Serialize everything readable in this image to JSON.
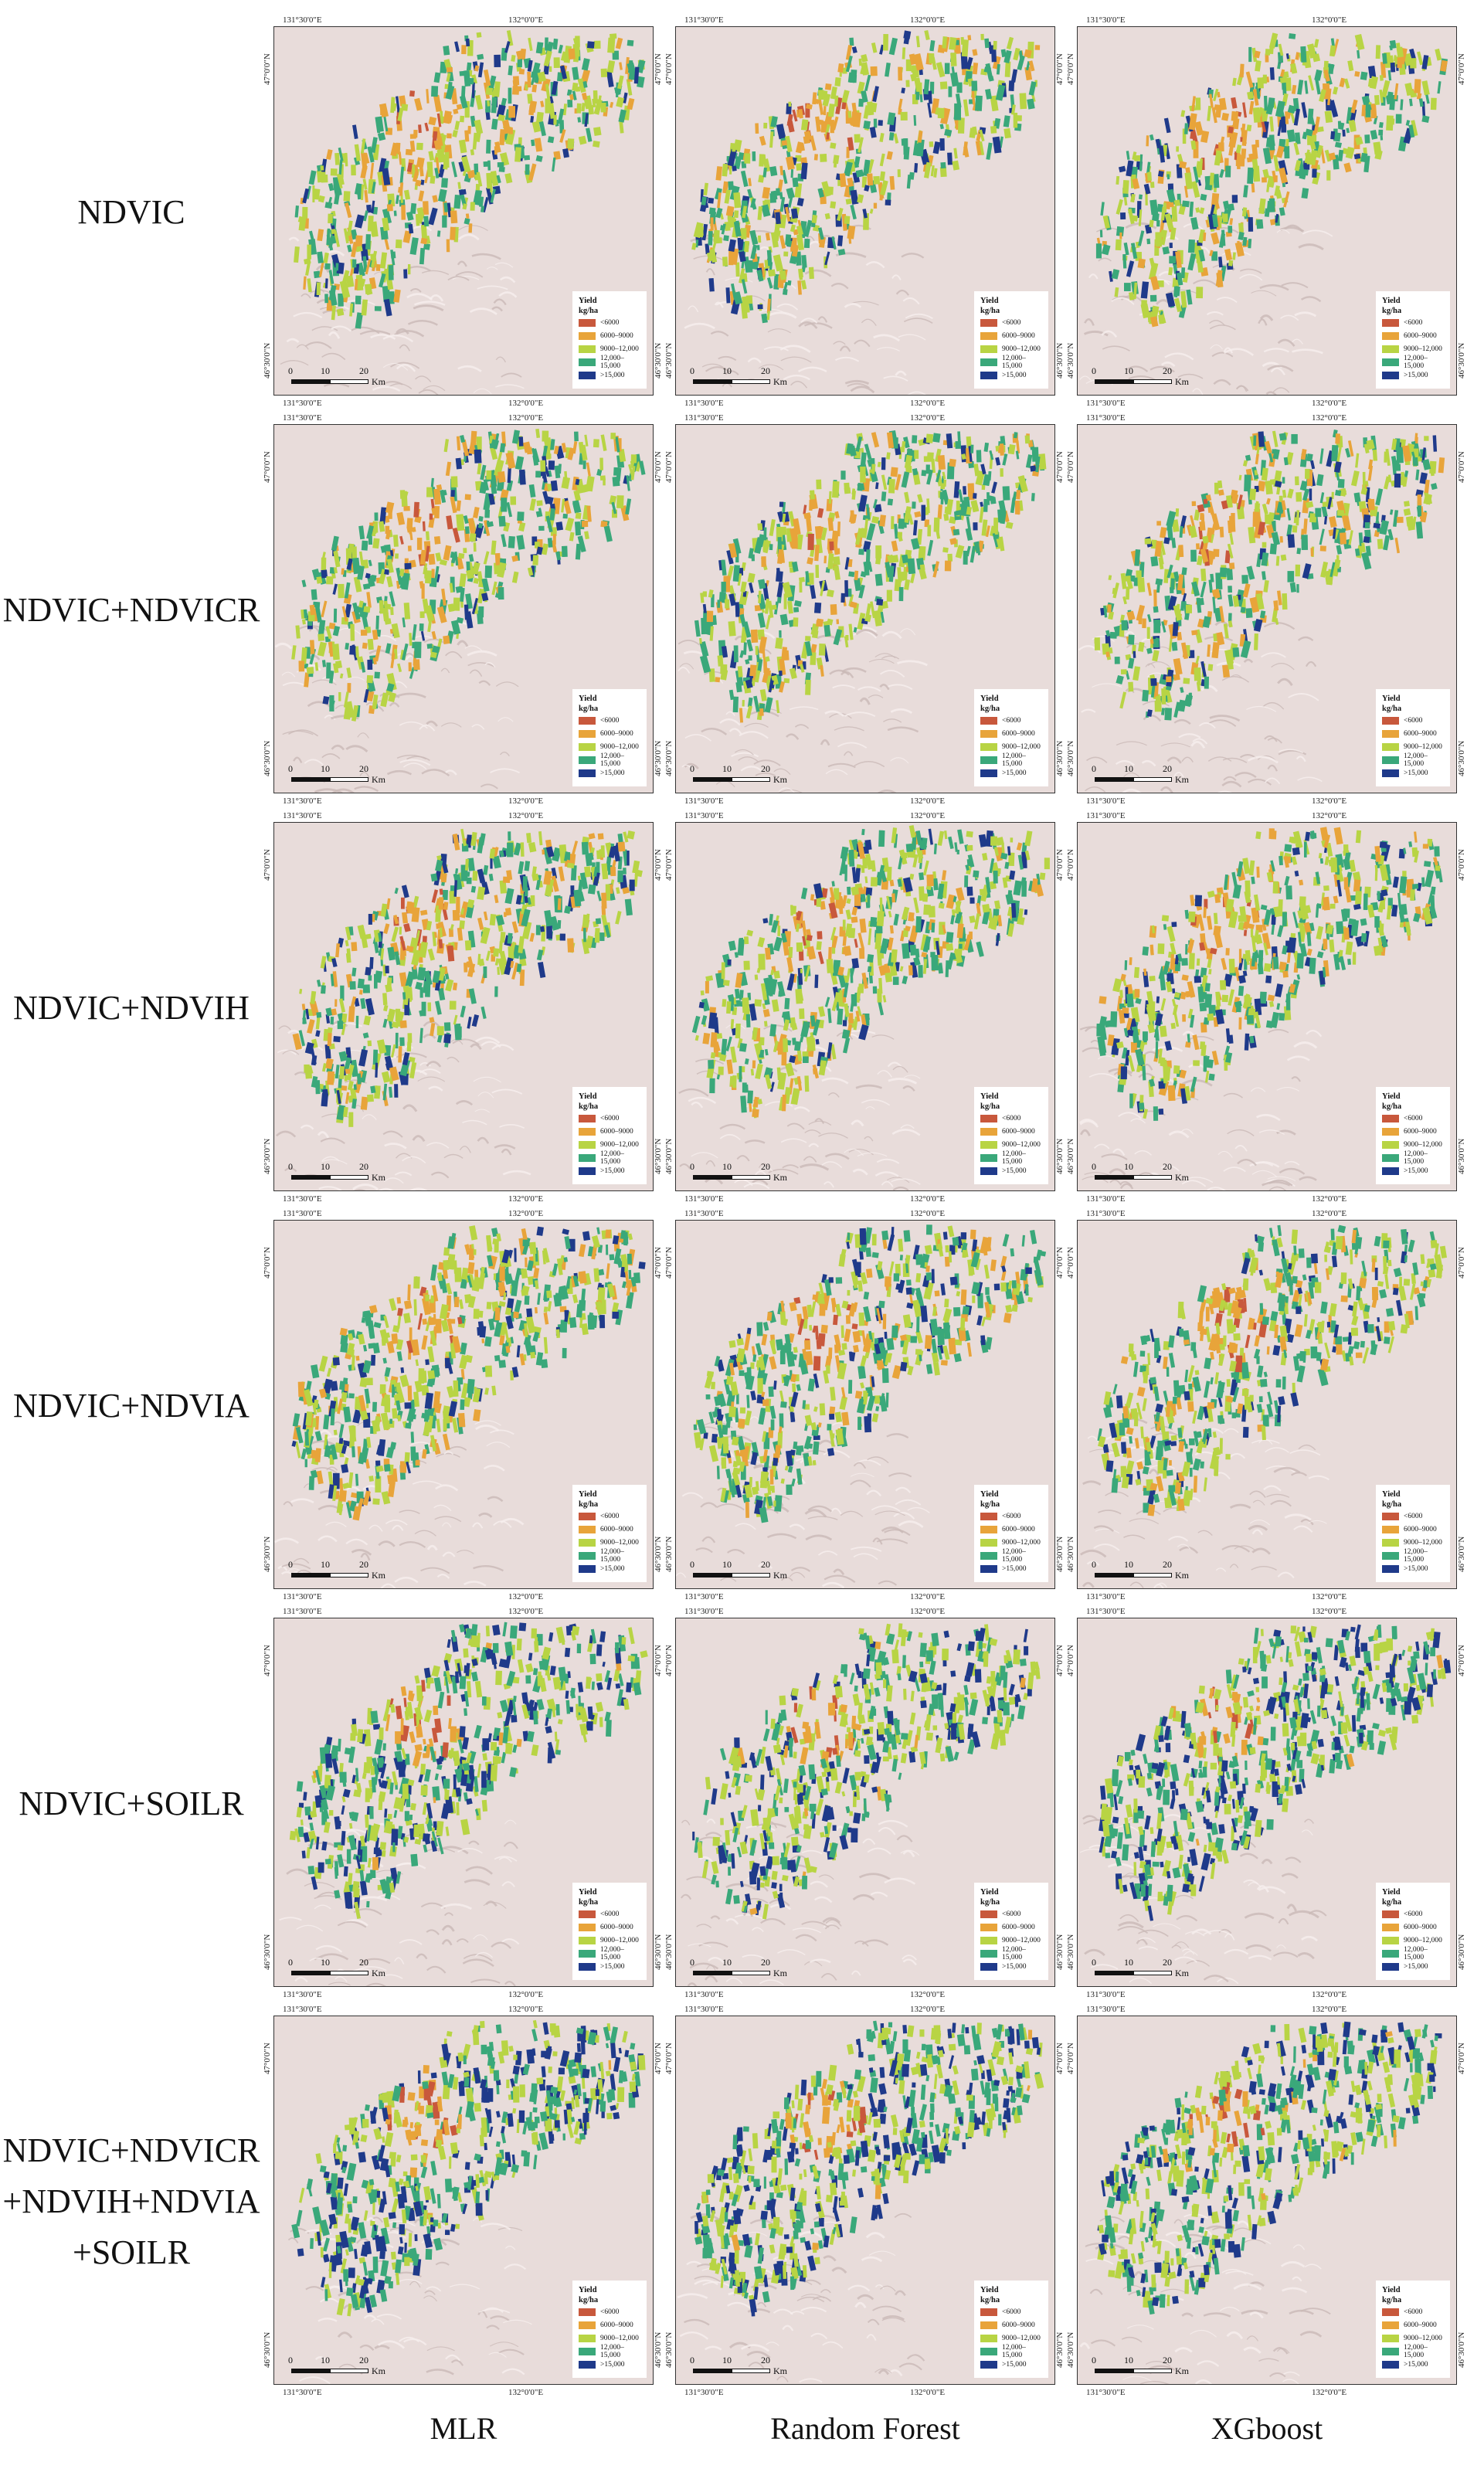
{
  "rows": [
    {
      "label": "NDVIC"
    },
    {
      "label": "NDVIC+NDVICR"
    },
    {
      "label": "NDVIC+NDVIH"
    },
    {
      "label": "NDVIC+NDVIA"
    },
    {
      "label": "NDVIC+SOILR"
    },
    {
      "label": "NDVIC+NDVICR\n+NDVIH+NDVIA\n+SOILR"
    }
  ],
  "columns": [
    {
      "label": "MLR"
    },
    {
      "label": "Random Forest"
    },
    {
      "label": "XGboost"
    }
  ],
  "map": {
    "coords": {
      "lon_left": "131°30'0\"E",
      "lon_right": "132°0'0\"E",
      "lat_top": "47°0'0\"N",
      "lat_bottom": "46°30'0\"N"
    },
    "scale": {
      "ticks": [
        "0",
        "10",
        "20"
      ],
      "unit": "Km"
    },
    "legend": {
      "title": "Yield",
      "unit": "kg/ha",
      "classes": [
        {
          "label": "<6000",
          "color": "#c8583c"
        },
        {
          "label": "6000–9000",
          "color": "#e8a43a"
        },
        {
          "label": "9000–12,000",
          "color": "#b8d444"
        },
        {
          "label": "12,000–15,000",
          "color": "#3aa87a"
        },
        {
          "label": ">15,000",
          "color": "#1f3a8a"
        }
      ]
    }
  }
}
